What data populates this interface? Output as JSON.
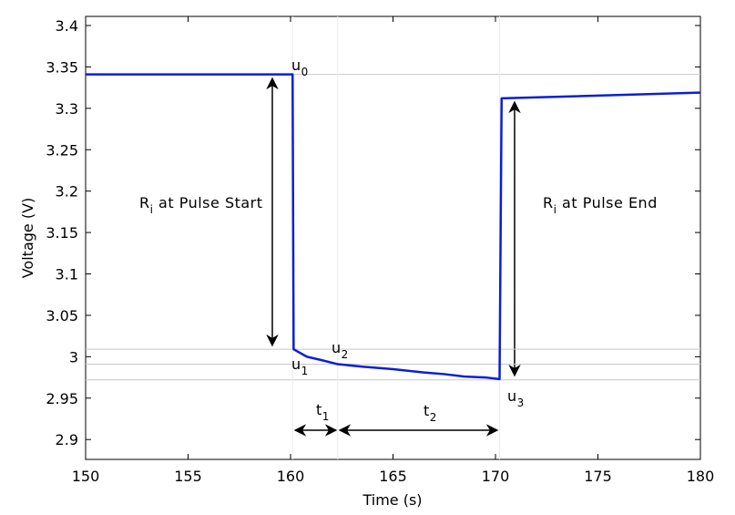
{
  "chart_data": {
    "type": "line",
    "xlabel": "Time (s)",
    "ylabel": "Voltage (V)",
    "x": [
      150,
      160.1,
      160.15,
      160.8,
      161.5,
      162.3,
      163.5,
      165,
      166.5,
      167.5,
      168.5,
      169.5,
      170.2,
      170.3,
      180
    ],
    "series": [
      {
        "color": "#0a1fd6",
        "values": [
          3.341,
          3.341,
          3.009,
          3.0,
          2.996,
          2.991,
          2.988,
          2.985,
          2.981,
          2.979,
          2.976,
          2.975,
          2.973,
          3.312,
          3.319
        ]
      }
    ],
    "xlim": [
      150,
      180
    ],
    "xticks": [
      150,
      155,
      160,
      165,
      170,
      175,
      180
    ],
    "ylim": [
      2.876,
      3.411
    ],
    "yticks": [
      2.9,
      2.95,
      {
        "value": 3,
        "label": "3"
      },
      3.05,
      3.1,
      3.15,
      3.2,
      3.25,
      3.3,
      3.35,
      3.4
    ],
    "hlines": [
      3.341,
      3.009,
      2.991,
      2.972
    ],
    "vlines": [
      160.1,
      162.3,
      170.2
    ],
    "grid": false,
    "annotations": [
      {
        "main": "u",
        "sub": "0"
      },
      {
        "main": "u",
        "sub": "1"
      },
      {
        "main": "u",
        "sub": "2"
      },
      {
        "main": "u",
        "sub": "3"
      },
      {
        "main": "t",
        "sub": "1"
      },
      {
        "main": "t",
        "sub": "2"
      },
      {
        "main": "R",
        "sub": "i",
        "rest": " at Pulse Start"
      },
      {
        "main": "R",
        "sub": "i",
        "rest": " at Pulse End"
      }
    ]
  }
}
